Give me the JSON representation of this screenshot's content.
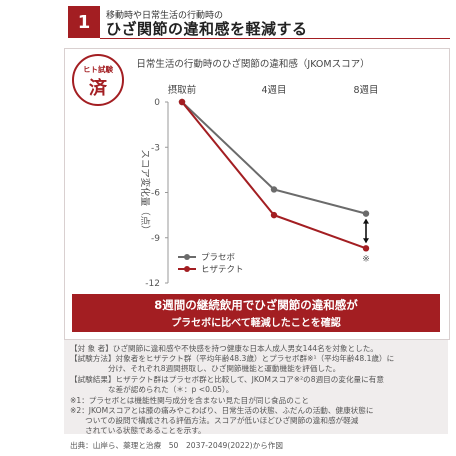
{
  "header": {
    "number": "1",
    "subtitle": "移動時や日常生活の行動時の",
    "title": "ひざ関節の違和感を軽減する"
  },
  "badge": {
    "top": "ヒト試験",
    "main": "済"
  },
  "chart_data": {
    "type": "line",
    "title": "日常生活の行動時のひざ関節の違和感（JKOMスコア）",
    "categories": [
      "摂取前",
      "4週目",
      "8週目"
    ],
    "ylabel": "スコア変化量（点）",
    "ylim": [
      -12,
      0
    ],
    "yticks": [
      0,
      -3,
      -6,
      -9,
      -12
    ],
    "series": [
      {
        "name": "プラセボ",
        "color": "#6b6b6b",
        "values": [
          0,
          -5.8,
          -7.4
        ]
      },
      {
        "name": "ヒザテクト",
        "color": "#a31e22",
        "values": [
          0,
          -7.5,
          -9.7
        ]
      }
    ],
    "annotation": "※",
    "legend": "bottom-left",
    "grid": false
  },
  "banner": {
    "line1": "8週間の継続飲用でひざ関節の違和感が",
    "line2": "プラセボに比べて軽減したことを確認"
  },
  "notes": [
    "【対 象 者】ひざ関節に違和感や不快感を持つ健康な日本人成人男女144名を対象とした。",
    "【試験方法】対象者をヒザテクト群（平均年齢48.3歳）とプラセボ群※¹（平均年齢48.1歳）に",
    "　　　　　分け、それぞれ8週間摂取し、ひざ関節機能と運動機能を評価した。",
    "【試験結果】ヒザテクト群はプラセボ群と比較して、JKOMスコア※²の8週目の変化量に有意",
    "　　　　　な差が認められた（＊：p <0.05）。",
    "※1：プラセボとは機能性関与成分を含まない見た目が同じ食品のこと",
    "※2：JKOMスコアとは膝の痛みやこわばり、日常生活の状態、ふだんの活動、健康状態に",
    "　　ついての設問で構成される評価方法。スコアが低いほどひざ関節の違和感が軽減",
    "　　されている状態であることを示す。"
  ],
  "source": "出典：山岸ら、薬理と治療　50　2037-2049(2022)から作図"
}
